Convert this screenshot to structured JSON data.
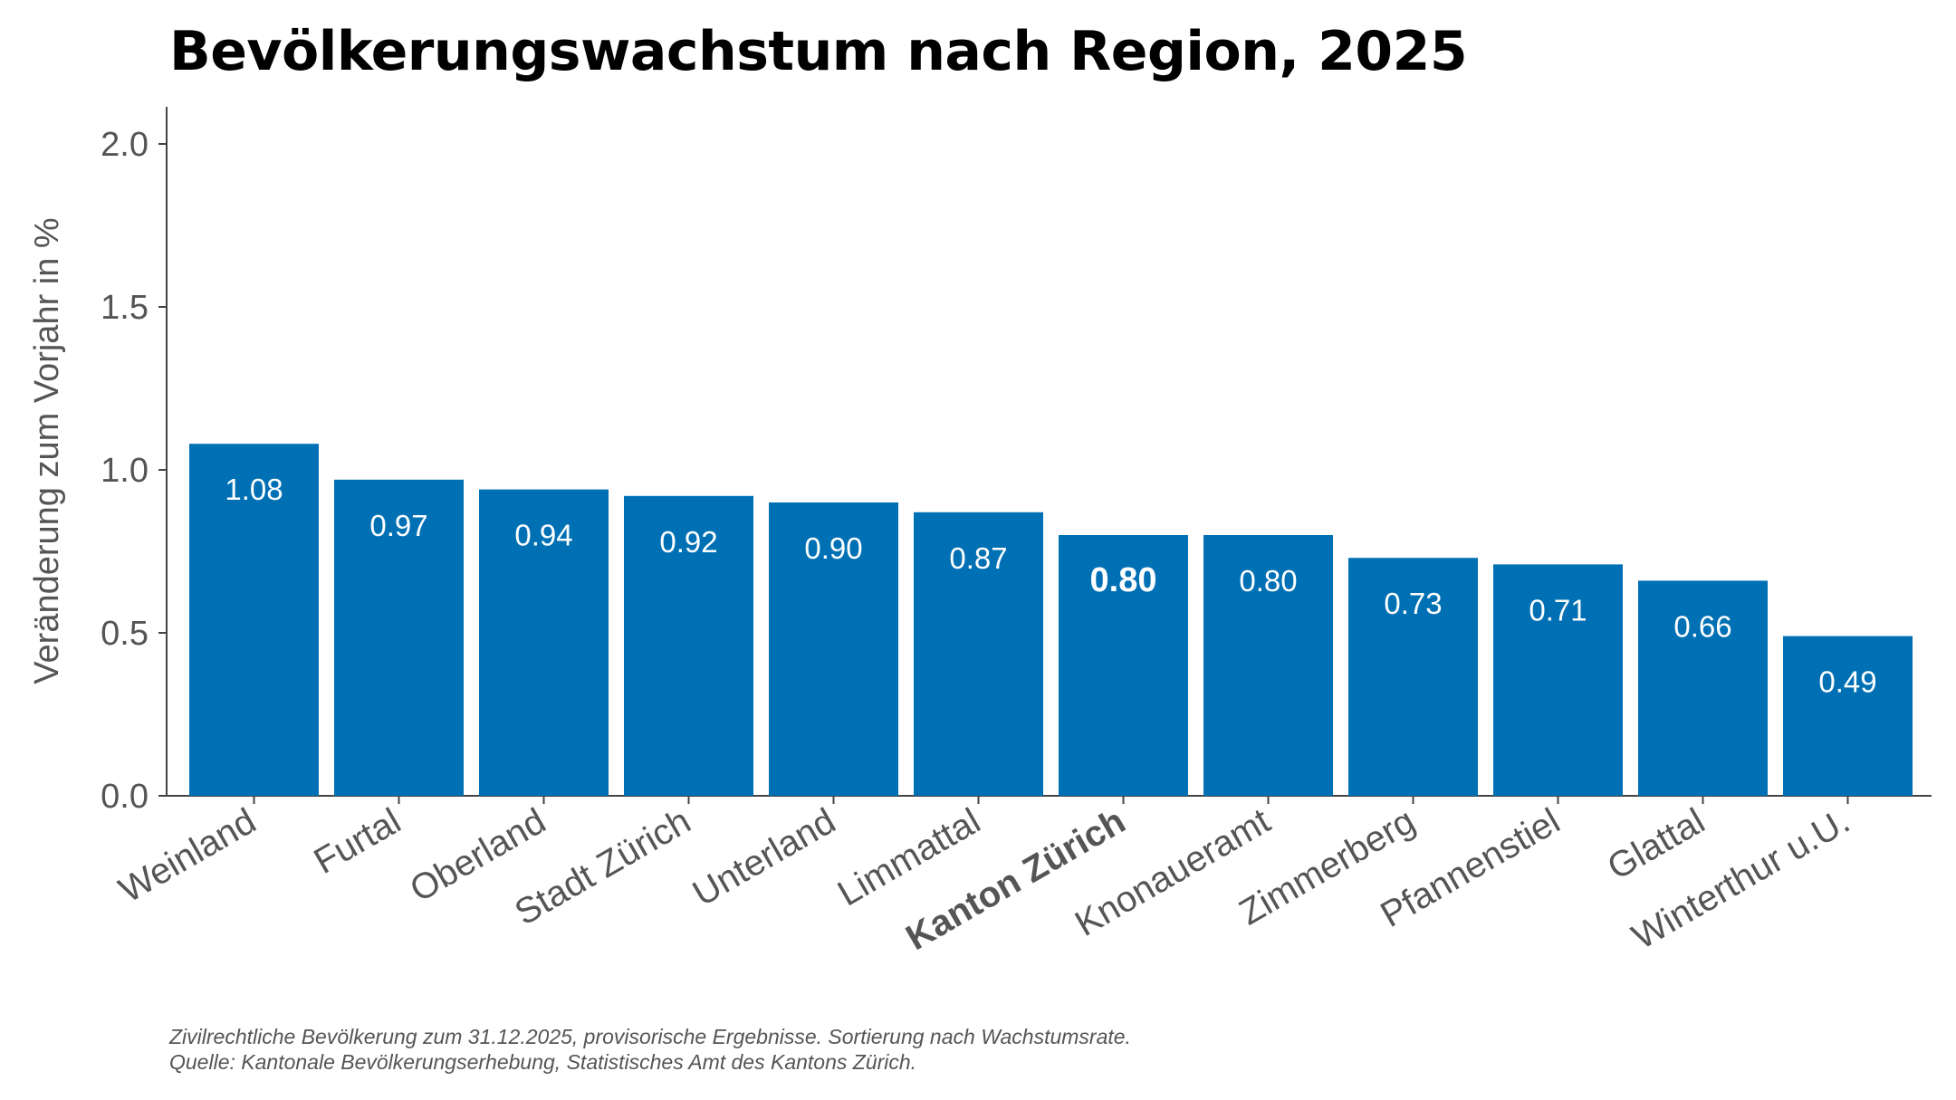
{
  "title": "Bevölkerungswachstum nach Region, 2025",
  "footer": {
    "note": "Zivilrechtliche Bevölkerung zum 31.12.2025, provisorische Ergebnisse. Sortierung nach Wachstumsrate.",
    "source": "Quelle: Kantonale Bevölkerungserhebung, Statistisches Amt des Kantons Zürich."
  },
  "chart_data": {
    "type": "bar",
    "title": "Bevölkerungswachstum nach Region, 2025",
    "xlabel": "",
    "ylabel": "Veränderung zum Vorjahr in %",
    "ylim": [
      0,
      2.1
    ],
    "yticks": [
      "0.0",
      "0.5",
      "1.0",
      "1.5",
      "2.0"
    ],
    "grid": false,
    "bar_color": "#0070b5",
    "categories": [
      "Weinland",
      "Furtal",
      "Oberland",
      "Stadt Zürich",
      "Unterland",
      "Limmattal",
      "Kanton Zürich",
      "Knonaueramt",
      "Zimmerberg",
      "Pfannenstiel",
      "Glattal",
      "Winterthur u.U."
    ],
    "values": [
      1.08,
      0.97,
      0.94,
      0.92,
      0.9,
      0.87,
      0.8,
      0.8,
      0.73,
      0.71,
      0.66,
      0.49
    ],
    "labels": [
      "1.08",
      "0.97",
      "0.94",
      "0.92",
      "0.90",
      "0.87",
      "0.80",
      "0.80",
      "0.73",
      "0.71",
      "0.66",
      "0.49"
    ],
    "highlight": "Kanton Zürich"
  }
}
